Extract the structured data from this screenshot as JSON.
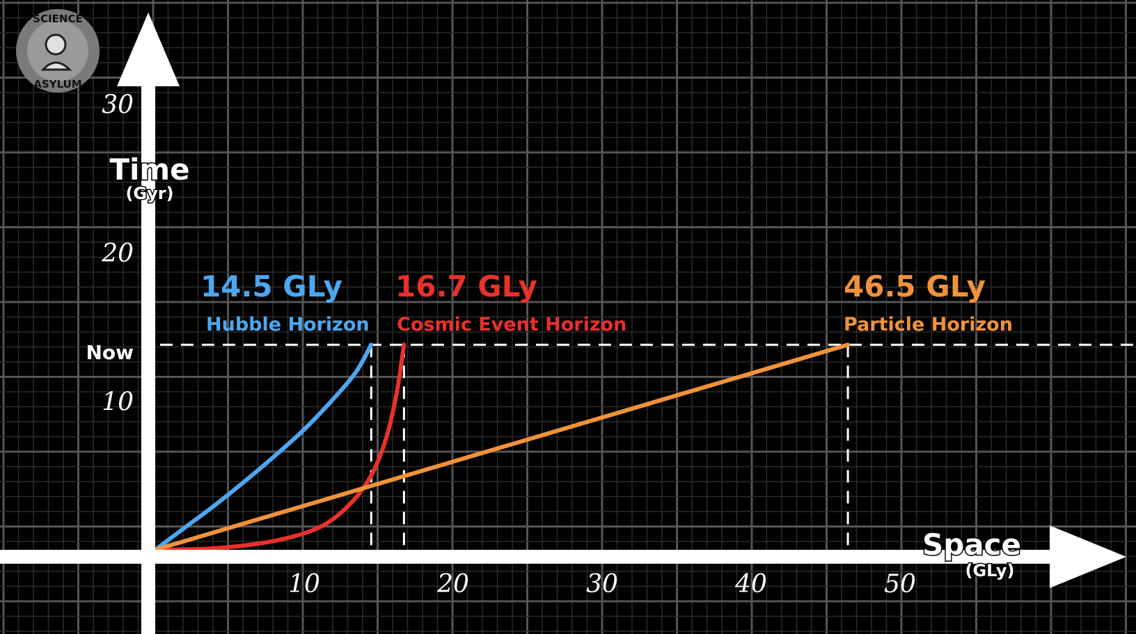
{
  "logo": {
    "top_text": "SCIENCE",
    "bottom_text": "ASYLUM"
  },
  "chart_data": {
    "type": "line",
    "title": "",
    "xlabel": "Space",
    "xunit": "(GLy)",
    "ylabel": "Time",
    "yunit": "(Gyr)",
    "xlim": [
      0,
      65
    ],
    "ylim": [
      0,
      36
    ],
    "xticks": [
      10,
      20,
      30,
      40,
      50
    ],
    "yticks": [
      10,
      20,
      30
    ],
    "now_value": 13.8,
    "now_label": "Now",
    "grid": true,
    "series": [
      {
        "name": "Hubble Horizon",
        "value_label": "14.5 GLy",
        "distance": 14.5,
        "color": "#4da6ef",
        "x": [
          0,
          2,
          4,
          6,
          8,
          10,
          12,
          13.5,
          14.5
        ],
        "y": [
          0,
          1.5,
          3.0,
          4.6,
          6.3,
          8.1,
          10.2,
          12.0,
          13.8
        ]
      },
      {
        "name": "Cosmic Event Horizon",
        "value_label": "16.7 GLy",
        "distance": 16.7,
        "color": "#e8312a",
        "x": [
          0,
          4,
          8,
          11,
          13,
          14.5,
          15.5,
          16.2,
          16.7
        ],
        "y": [
          0,
          0.1,
          0.6,
          1.5,
          3.0,
          5.0,
          7.5,
          10.5,
          13.8
        ]
      },
      {
        "name": "Particle Horizon",
        "value_label": "46.5 GLy",
        "distance": 46.5,
        "color": "#f0923a",
        "x": [
          0,
          46.5
        ],
        "y": [
          0,
          13.8
        ]
      }
    ]
  }
}
